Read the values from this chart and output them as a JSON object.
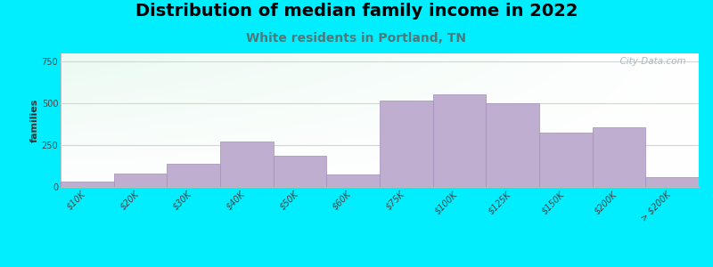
{
  "title": "Distribution of median family income in 2022",
  "subtitle": "White residents in Portland, TN",
  "ylabel": "families",
  "categories": [
    "$10K",
    "$20K",
    "$30K",
    "$40K",
    "$50K",
    "$60K",
    "$75K",
    "$100K",
    "$125K",
    "$150K",
    "$200K",
    "> $200K"
  ],
  "values": [
    30,
    80,
    140,
    270,
    185,
    75,
    520,
    555,
    500,
    325,
    355,
    60
  ],
  "bar_color": "#c0aed0",
  "bar_edge_color": "#a090bb",
  "background_outer": "#00eeff",
  "title_fontsize": 14,
  "subtitle_fontsize": 10,
  "subtitle_color": "#4a7a7a",
  "ylabel_fontsize": 8,
  "tick_label_fontsize": 7,
  "yticks": [
    0,
    250,
    500,
    750
  ],
  "ylim": [
    0,
    800
  ],
  "watermark_text": "  City-Data.com",
  "watermark_color": "#a0b0b8",
  "grid_color": "#d0d8d0",
  "grid_linewidth": 0.8
}
